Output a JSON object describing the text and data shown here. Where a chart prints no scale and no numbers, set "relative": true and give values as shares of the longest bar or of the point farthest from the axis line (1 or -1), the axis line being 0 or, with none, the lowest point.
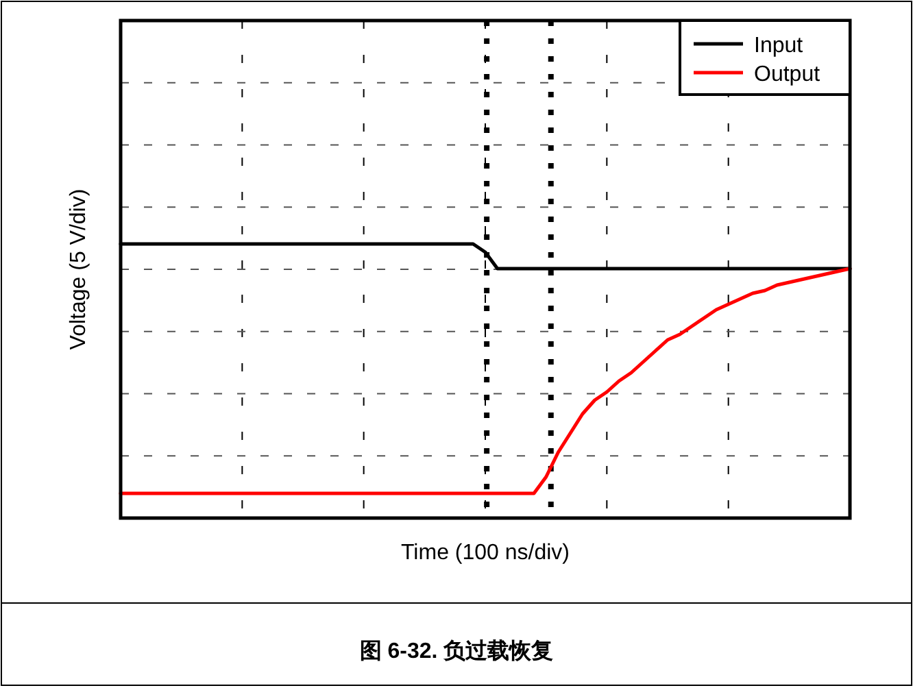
{
  "chart_data": {
    "type": "line",
    "title": "图 6-32. 负过载恢复",
    "xlabel": "Time (100 ns/div)",
    "ylabel": "Voltage (5 V/div)",
    "relative": true,
    "grid": true,
    "legend": "top right",
    "line_style": "solid",
    "categories": [
      null,
      null,
      null,
      null,
      null,
      null,
      null,
      null,
      null,
      null,
      null,
      null,
      null,
      null,
      null,
      null,
      null,
      null,
      null,
      null,
      null,
      null,
      null,
      null,
      null,
      null,
      null,
      null,
      null,
      null,
      null,
      null,
      null,
      null,
      null,
      null,
      null,
      null,
      null,
      null,
      null,
      null,
      null,
      null,
      null,
      null,
      null,
      null,
      null,
      null,
      null,
      null,
      null,
      null,
      null,
      null,
      null,
      null,
      null,
      null,
      null
    ],
    "series": [
      {
        "name": "Input",
        "color": "#000000",
        "values": [
          1,
          1,
          1,
          1,
          1,
          1,
          1,
          1,
          1,
          1,
          1,
          1,
          1,
          1,
          1,
          1,
          1,
          1,
          1,
          1,
          1,
          1,
          1,
          1,
          1,
          1,
          1,
          1,
          1,
          1,
          0.97,
          0.91,
          0.91,
          0.91,
          0.91,
          0.91,
          0.91,
          0.91,
          0.91,
          0.91,
          0.91,
          0.91,
          0.91,
          0.91,
          0.91,
          0.91,
          0.91,
          0.91,
          0.91,
          0.91,
          0.91,
          0.91,
          0.91,
          0.91,
          0.91,
          0.91,
          0.91,
          0.91,
          0.91,
          0.91,
          0.91
        ]
      },
      {
        "name": "Output",
        "color": "#ff0000",
        "values": [
          0.09,
          0.09,
          0.09,
          0.09,
          0.09,
          0.09,
          0.09,
          0.09,
          0.09,
          0.09,
          0.09,
          0.09,
          0.09,
          0.09,
          0.09,
          0.09,
          0.09,
          0.09,
          0.09,
          0.09,
          0.09,
          0.09,
          0.09,
          0.09,
          0.09,
          0.09,
          0.09,
          0.09,
          0.09,
          0.09,
          0.09,
          0.09,
          0.09,
          0.09,
          0.09,
          0.15,
          0.24,
          0.31,
          0.38,
          0.43,
          0.46,
          0.5,
          0.53,
          0.57,
          0.61,
          0.65,
          0.67,
          0.7,
          0.73,
          0.76,
          0.78,
          0.8,
          0.82,
          0.83,
          0.85,
          0.86,
          0.87,
          0.88,
          0.89,
          0.9,
          0.91
        ]
      }
    ]
  }
}
